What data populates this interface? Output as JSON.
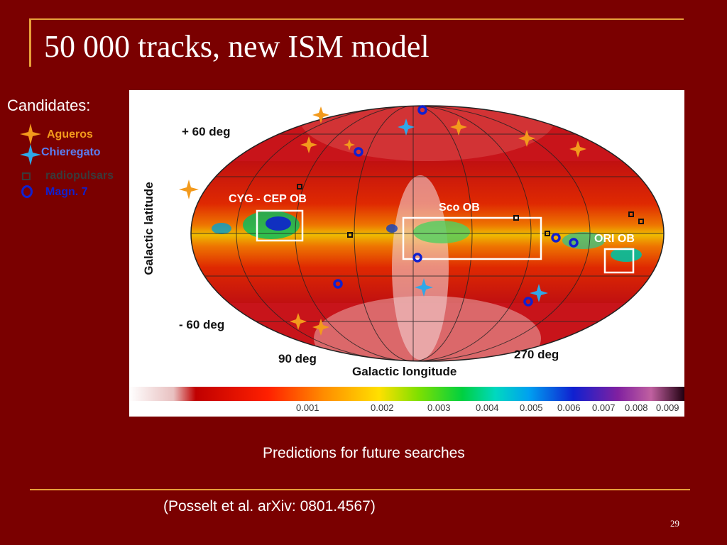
{
  "slide": {
    "title": "50 000 tracks, new ISM model",
    "candidates_label": "Candidates:",
    "caption": "Predictions for future searches",
    "reference": "(Posselt et al. arXiv: 0801.4567)",
    "page_number": "29"
  },
  "legend": [
    {
      "label": "Agueros",
      "color": "#f39a1c",
      "icon": "star4-icon"
    },
    {
      "label": "Chieregato",
      "color": "#5a7df0",
      "icon": "star4-icon"
    },
    {
      "label": "radiopulsars",
      "color": "#3a3a3a",
      "icon": "square-icon"
    },
    {
      "label": "Magn. 7",
      "color": "#1020d0",
      "icon": "circle-icon"
    }
  ],
  "map": {
    "lat_plus": "+ 60 deg",
    "lat_minus": "- 60 deg",
    "lon_90": "90 deg",
    "lon_270": "270 deg",
    "ylabel": "Galactic latitude",
    "xlabel": "Galactic longitude",
    "regions": [
      "CYG - CEP OB",
      "Sco OB",
      "ORI OB"
    ]
  },
  "colorbar": {
    "ticks": [
      "0.001",
      "0.002",
      "0.003",
      "0.004",
      "0.005",
      "0.006",
      "0.007",
      "0.008",
      "0.009"
    ]
  }
}
